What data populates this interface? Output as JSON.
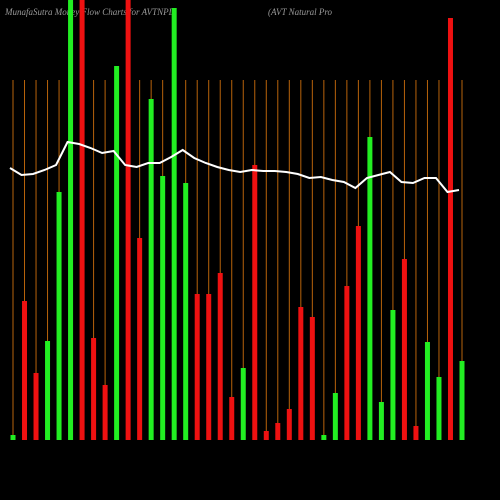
{
  "chart_data": {
    "type": "bar",
    "title": "MunafaSutra Money Flow Charts for AVTNPL",
    "subtitle": "(AVT Natural Pro",
    "values": [
      5,
      139,
      67,
      99,
      248,
      440,
      440,
      102,
      55,
      374,
      440,
      202,
      341,
      264,
      432,
      257,
      146,
      146,
      167,
      43,
      72,
      275,
      9,
      17,
      31,
      133,
      123,
      5,
      47,
      154,
      214,
      303,
      38,
      130,
      181,
      14,
      98,
      63,
      422,
      79
    ],
    "colors": [
      "#22ee22",
      "#ee1111",
      "#ee1111",
      "#22ee22",
      "#22ee22",
      "#22ee22",
      "#ee1111",
      "#ee1111",
      "#ee1111",
      "#22ee22",
      "#ee1111",
      "#ee1111",
      "#22ee22",
      "#22ee22",
      "#22ee22",
      "#22ee22",
      "#ee1111",
      "#ee1111",
      "#ee1111",
      "#ee1111",
      "#22ee22",
      "#ee1111",
      "#ee1111",
      "#ee1111",
      "#ee1111",
      "#ee1111",
      "#ee1111",
      "#22ee22",
      "#22ee22",
      "#ee1111",
      "#ee1111",
      "#22ee22",
      "#22ee22",
      "#22ee22",
      "#ee1111",
      "#ee1111",
      "#22ee22",
      "#22ee22",
      "#ee1111",
      "#22ee22"
    ],
    "line": {
      "color": "#ffffff",
      "values": [
        272,
        265,
        266,
        270,
        275,
        298,
        296,
        292,
        287,
        289,
        275,
        273,
        277,
        277,
        283,
        290,
        282,
        277,
        273,
        270,
        268,
        270,
        269,
        269,
        268,
        266,
        262,
        263,
        260,
        258,
        252,
        262,
        265,
        268,
        258,
        257,
        262,
        262,
        248,
        250
      ]
    },
    "ylim": [
      0,
      440
    ],
    "gridline_color": "#b8630b"
  }
}
